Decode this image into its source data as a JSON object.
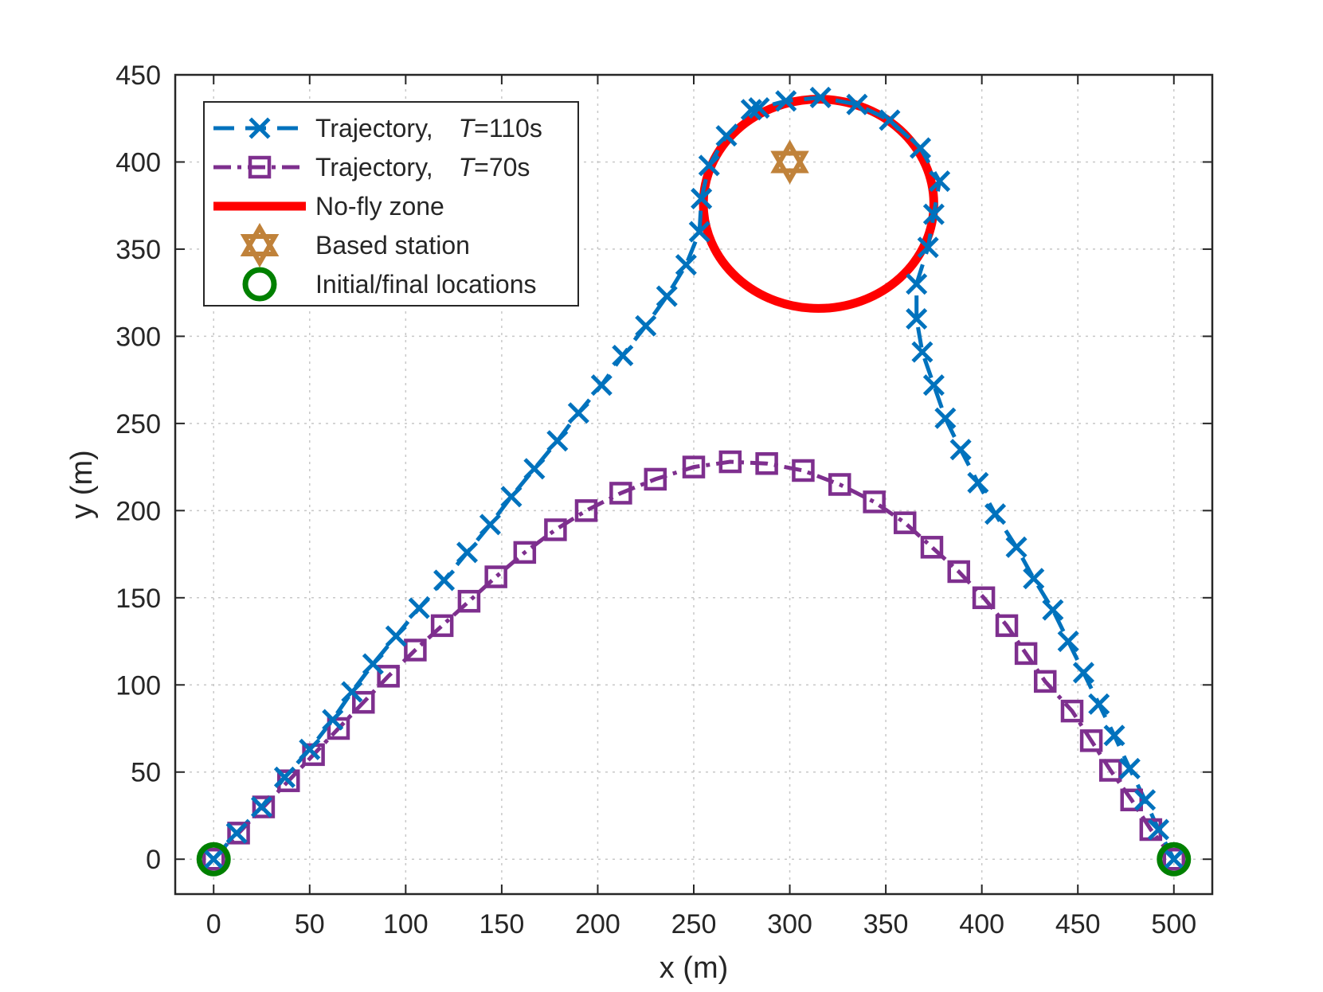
{
  "chart_data": {
    "type": "line",
    "xlabel": "x (m)",
    "ylabel": "y (m)",
    "xlim": [
      -20,
      520
    ],
    "ylim": [
      -20,
      450
    ],
    "xticks": [
      0,
      50,
      100,
      150,
      200,
      250,
      300,
      350,
      400,
      450,
      500
    ],
    "yticks": [
      0,
      50,
      100,
      150,
      200,
      250,
      300,
      350,
      400,
      450
    ],
    "xtick_labels": [
      "0",
      "50",
      "100",
      "150",
      "200",
      "250",
      "300",
      "350",
      "400",
      "450",
      "500"
    ],
    "ytick_labels": [
      "0",
      "50",
      "100",
      "150",
      "200",
      "250",
      "300",
      "350",
      "400",
      "450"
    ],
    "grid": true,
    "legend_position": "top-left",
    "legend": [
      {
        "name": "Trajectory,",
        "italic": "T",
        "suffix": "=110s",
        "style": "dashed-x"
      },
      {
        "name": "Trajectory,",
        "italic": "T",
        "suffix": "=70s",
        "style": "dashdot-square"
      },
      {
        "name": "No-fly zone",
        "style": "solid-red"
      },
      {
        "name": "Based station",
        "style": "hexagram"
      },
      {
        "name": "Initial/final locations",
        "style": "circle"
      }
    ],
    "colors": {
      "traj_110": "#0072BD",
      "traj_70": "#7E2F8E",
      "no_fly": "#FF0000",
      "base_station": "#C0823A",
      "endpoints": "#008000"
    },
    "series": [
      {
        "name": "Trajectory, T=110s",
        "points": [
          [
            0,
            0
          ],
          [
            12,
            15
          ],
          [
            25,
            30
          ],
          [
            37,
            47
          ],
          [
            50,
            63
          ],
          [
            62,
            80
          ],
          [
            72,
            96
          ],
          [
            83,
            112
          ],
          [
            95,
            128
          ],
          [
            107,
            144
          ],
          [
            120,
            160
          ],
          [
            132,
            176
          ],
          [
            144,
            192
          ],
          [
            155,
            208
          ],
          [
            167,
            224
          ],
          [
            179,
            240
          ],
          [
            190,
            256
          ],
          [
            202,
            272
          ],
          [
            213,
            289
          ],
          [
            225,
            306
          ],
          [
            236,
            323
          ],
          [
            246,
            341
          ],
          [
            253,
            360
          ],
          [
            254,
            379
          ],
          [
            258,
            398
          ],
          [
            267,
            415
          ],
          [
            280,
            430
          ],
          [
            284,
            431
          ],
          [
            298,
            435
          ],
          [
            316,
            437
          ],
          [
            335,
            433
          ],
          [
            352,
            424
          ],
          [
            368,
            408
          ],
          [
            378,
            389
          ],
          [
            375,
            370
          ],
          [
            372,
            351
          ],
          [
            366,
            330
          ],
          [
            366,
            310
          ],
          [
            369,
            291
          ],
          [
            375,
            272
          ],
          [
            381,
            253
          ],
          [
            389,
            235
          ],
          [
            398,
            216
          ],
          [
            407,
            198
          ],
          [
            418,
            179
          ],
          [
            427,
            161
          ],
          [
            437,
            143
          ],
          [
            445,
            125
          ],
          [
            453,
            107
          ],
          [
            461,
            89
          ],
          [
            469,
            71
          ],
          [
            477,
            52
          ],
          [
            485,
            34
          ],
          [
            492,
            17
          ],
          [
            500,
            0
          ]
        ]
      },
      {
        "name": "Trajectory, T=70s",
        "points": [
          [
            0,
            0
          ],
          [
            13,
            15
          ],
          [
            26,
            30
          ],
          [
            39,
            45
          ],
          [
            52,
            60
          ],
          [
            65,
            75
          ],
          [
            78,
            90
          ],
          [
            91,
            105
          ],
          [
            105,
            120
          ],
          [
            119,
            134
          ],
          [
            133,
            148
          ],
          [
            147,
            162
          ],
          [
            162,
            176
          ],
          [
            178,
            189
          ],
          [
            194,
            200
          ],
          [
            212,
            210
          ],
          [
            230,
            218
          ],
          [
            250,
            225
          ],
          [
            269,
            228
          ],
          [
            288,
            227
          ],
          [
            307,
            223
          ],
          [
            326,
            215
          ],
          [
            344,
            205
          ],
          [
            360,
            193
          ],
          [
            374,
            179
          ],
          [
            388,
            165
          ],
          [
            401,
            150
          ],
          [
            413,
            134
          ],
          [
            423,
            118
          ],
          [
            433,
            102
          ],
          [
            447,
            85
          ],
          [
            457,
            68
          ],
          [
            467,
            51
          ],
          [
            478,
            34
          ],
          [
            488,
            17
          ],
          [
            500,
            0
          ]
        ]
      }
    ],
    "no_fly_zone": {
      "center": [
        315,
        376
      ],
      "radius": 60
    },
    "base_station": [
      300,
      400
    ],
    "endpoints": [
      [
        0,
        0
      ],
      [
        500,
        0
      ]
    ]
  }
}
